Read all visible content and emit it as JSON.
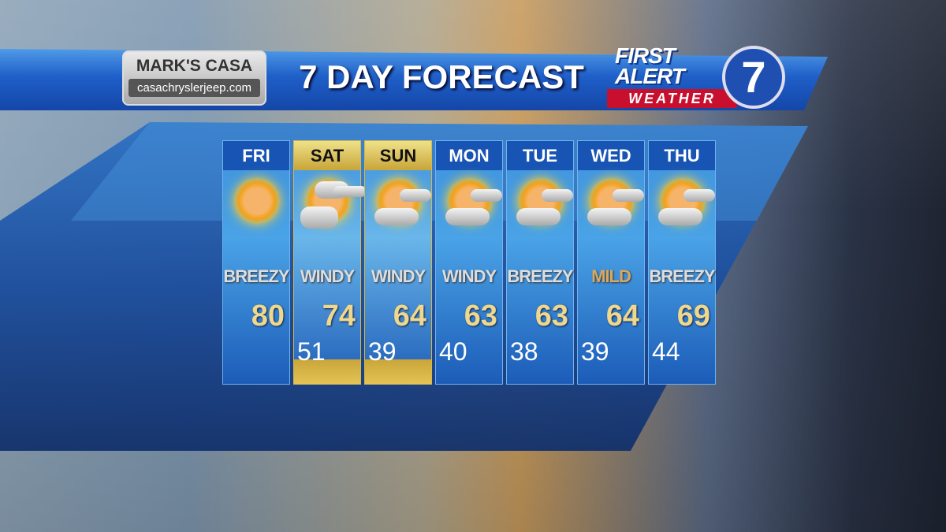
{
  "header": {
    "title": "7 DAY FORECAST",
    "sponsor": {
      "name": "MARK'S CASA",
      "url": "casachryslerjeep.com"
    },
    "station_logo": {
      "line1": "FIRST",
      "line2": "ALERT",
      "line3": "WEATHER",
      "channel": "7"
    }
  },
  "colors": {
    "highlight": "#d7b94a",
    "panel": "#1c4e9e",
    "high_temp": "#efd78c"
  },
  "days": [
    {
      "day": "FRI",
      "condition": "BREEZY",
      "high": "80",
      "low": "",
      "icon": "sunny",
      "weekend": false
    },
    {
      "day": "SAT",
      "condition": "WINDY",
      "high": "74",
      "low": "51",
      "icon": "mostly-cloudy",
      "weekend": true
    },
    {
      "day": "SUN",
      "condition": "WINDY",
      "high": "64",
      "low": "39",
      "icon": "partly-cloudy",
      "weekend": true
    },
    {
      "day": "MON",
      "condition": "WINDY",
      "high": "63",
      "low": "40",
      "icon": "partly-cloudy",
      "weekend": false
    },
    {
      "day": "TUE",
      "condition": "BREEZY",
      "high": "63",
      "low": "38",
      "icon": "partly-cloudy",
      "weekend": false
    },
    {
      "day": "WED",
      "condition": "MILD",
      "high": "64",
      "low": "39",
      "icon": "partly-cloudy",
      "weekend": false
    },
    {
      "day": "THU",
      "condition": "BREEZY",
      "high": "69",
      "low": "44",
      "icon": "partly-cloudy",
      "weekend": false
    }
  ]
}
